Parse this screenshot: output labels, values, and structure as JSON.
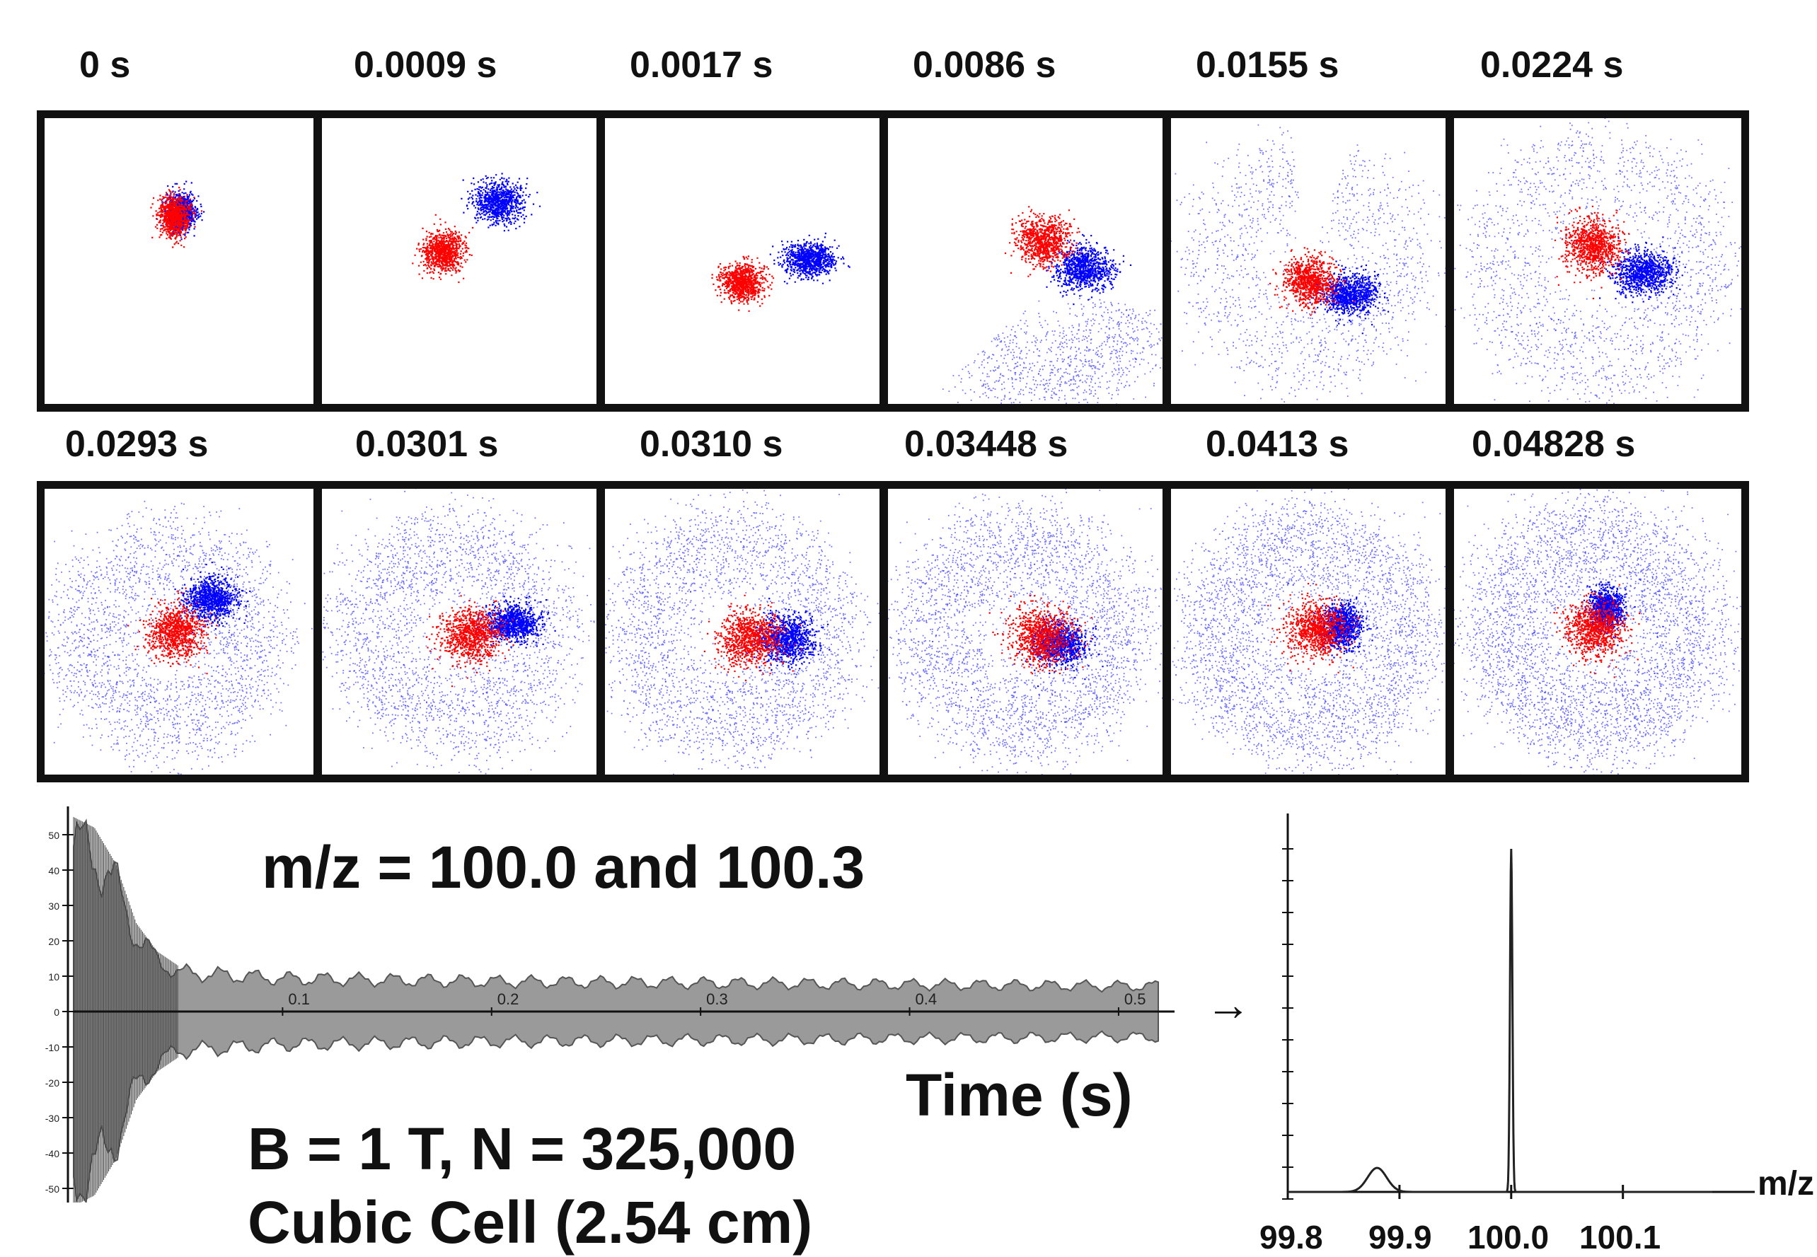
{
  "snapshots": {
    "times": [
      "0 s",
      "0.0009 s",
      "0.0017 s",
      "0.0086 s",
      "0.0155 s",
      "0.0224 s",
      "0.0293 s",
      "0.0301 s",
      "0.0310 s",
      "0.03448 s",
      "0.0413 s",
      "0.04828 s"
    ],
    "series_colors": {
      "ion_100_0": "#ff0000",
      "ion_100_3": "#0000ff"
    }
  },
  "annotations": {
    "mz_title": "m/z = 100.0 and 100.3",
    "params": "B = 1 T, N = 325,000",
    "cell": "Cubic Cell (2.54 cm)",
    "time_axis": "Time (s)",
    "mz_axis": "m/z",
    "arrow": "→"
  },
  "chart_data": [
    {
      "type": "line",
      "title": "",
      "xlabel": "Time (s)",
      "ylabel": "",
      "x_ticks": [
        "0.1",
        "0.2",
        "0.3",
        "0.4",
        "0.5"
      ],
      "y_ticks": [
        "50",
        "40",
        "30",
        "20",
        "10",
        "0",
        "-10",
        "-20",
        "-30",
        "-40",
        "-50"
      ],
      "xlim": [
        0,
        0.52
      ],
      "ylim": [
        -55,
        55
      ],
      "envelope": {
        "t": [
          0,
          0.01,
          0.02,
          0.03,
          0.04,
          0.05,
          0.1,
          0.2,
          0.3,
          0.4,
          0.5,
          0.52
        ],
        "amp": [
          55,
          52,
          42,
          25,
          17,
          13,
          11,
          10,
          9.5,
          9,
          8.5,
          8.5
        ]
      }
    },
    {
      "type": "line",
      "title": "",
      "xlabel": "m/z",
      "ylabel": "",
      "x_ticks": [
        "99.8",
        "99.9",
        "100.0",
        "100.1"
      ],
      "xlim": [
        99.8,
        100.18
      ],
      "ylim": [
        0,
        1
      ],
      "peaks": [
        {
          "mz": 99.88,
          "height": 0.07,
          "width": 0.012
        },
        {
          "mz": 100.0,
          "height": 1.0,
          "width": 0.0015
        }
      ]
    }
  ]
}
